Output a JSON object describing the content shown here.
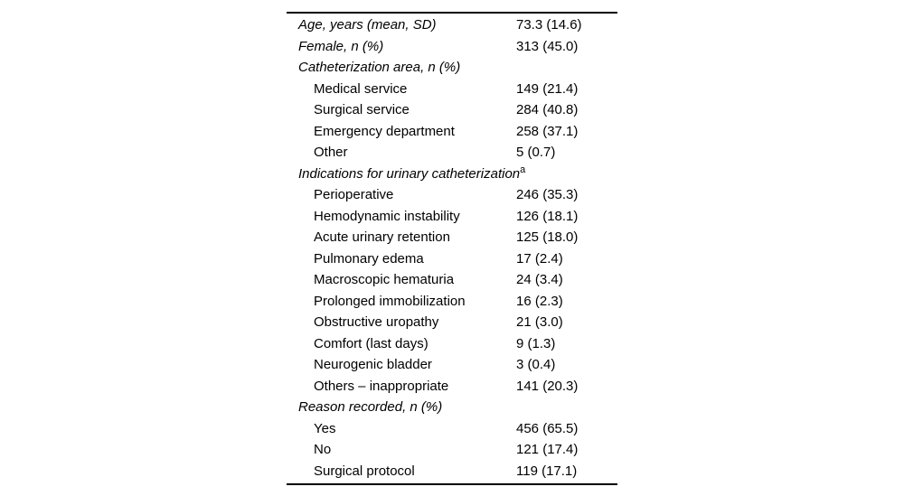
{
  "table": {
    "rows": [
      {
        "label": "Age, years (mean, SD)",
        "value": "73.3 (14.6)",
        "style": "header",
        "sup": ""
      },
      {
        "label": "Female, n (%)",
        "value": "313 (45.0)",
        "style": "header",
        "sup": ""
      },
      {
        "label": "Catheterization area, n (%)",
        "value": "",
        "style": "header",
        "sup": ""
      },
      {
        "label": "Medical service",
        "value": "149 (21.4)",
        "style": "sub",
        "sup": ""
      },
      {
        "label": "Surgical service",
        "value": "284 (40.8)",
        "style": "sub",
        "sup": ""
      },
      {
        "label": "Emergency department",
        "value": "258 (37.1)",
        "style": "sub",
        "sup": ""
      },
      {
        "label": "Other",
        "value": "5 (0.7)",
        "style": "sub",
        "sup": ""
      },
      {
        "label": "Indications for urinary catheterization",
        "value": "",
        "style": "header",
        "sup": "a"
      },
      {
        "label": "Perioperative",
        "value": "246 (35.3)",
        "style": "sub",
        "sup": ""
      },
      {
        "label": "Hemodynamic instability",
        "value": "126 (18.1)",
        "style": "sub",
        "sup": ""
      },
      {
        "label": "Acute urinary retention",
        "value": "125 (18.0)",
        "style": "sub",
        "sup": ""
      },
      {
        "label": "Pulmonary edema",
        "value": "17 (2.4)",
        "style": "sub",
        "sup": ""
      },
      {
        "label": "Macroscopic hematuria",
        "value": "24 (3.4)",
        "style": "sub",
        "sup": ""
      },
      {
        "label": "Prolonged immobilization",
        "value": "16 (2.3)",
        "style": "sub",
        "sup": ""
      },
      {
        "label": "Obstructive uropathy",
        "value": "21 (3.0)",
        "style": "sub",
        "sup": ""
      },
      {
        "label": "Comfort (last days)",
        "value": "9 (1.3)",
        "style": "sub",
        "sup": ""
      },
      {
        "label": "Neurogenic bladder",
        "value": "3 (0.4)",
        "style": "sub",
        "sup": ""
      },
      {
        "label": "Others – inappropriate",
        "value": "141 (20.3)",
        "style": "sub",
        "sup": ""
      },
      {
        "label": "Reason recorded, n (%)",
        "value": "",
        "style": "header",
        "sup": ""
      },
      {
        "label": "Yes",
        "value": "456 (65.5)",
        "style": "sub",
        "sup": ""
      },
      {
        "label": "No",
        "value": "121 (17.4)",
        "style": "sub",
        "sup": ""
      },
      {
        "label": "Surgical protocol",
        "value": "119 (17.1)",
        "style": "sub",
        "sup": ""
      }
    ],
    "colors": {
      "text": "#000000",
      "rule": "#000000",
      "background": "#ffffff"
    }
  }
}
